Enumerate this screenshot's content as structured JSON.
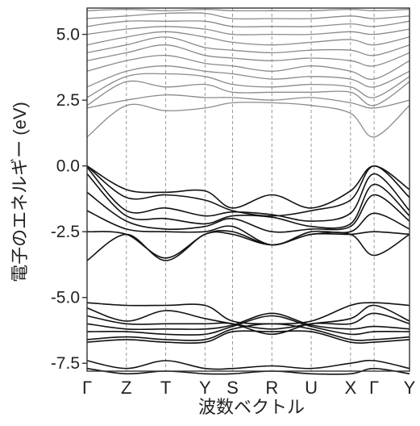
{
  "chart_data": {
    "type": "line",
    "xlabel": "波数ベクトル",
    "ylabel": "電子のエネルギー (eV)",
    "ylim": [
      -7.8,
      6.0
    ],
    "yticks": [
      5.0,
      2.5,
      0.0,
      -2.5,
      -5.0,
      -7.5
    ],
    "ytick_labels": [
      "5.0",
      "2.5",
      "0.0",
      "-2.5",
      "-5.0",
      "-7.5"
    ],
    "kpoints": [
      "Γ",
      "Z",
      "T",
      "Y",
      "S",
      "R",
      "U",
      "X",
      "Γ",
      "Y"
    ],
    "kpoint_x": [
      0,
      1,
      2,
      3,
      3.7,
      4.7,
      5.7,
      6.7,
      7.3,
      8.2
    ],
    "grid": "vertical dashed lines at k-points",
    "colors": {
      "conduction": "#8a8a8a",
      "valence": "#111111",
      "guide": "#999999",
      "axis": "#333333"
    },
    "series": [
      {
        "band": "valence",
        "y": [
          0.0,
          -0.9,
          -1.0,
          -0.95,
          -1.6,
          -1.1,
          -1.6,
          -0.95,
          0.0,
          -0.9
        ]
      },
      {
        "band": "valence",
        "y": [
          0.0,
          -1.2,
          -1.1,
          -1.3,
          -1.7,
          -1.9,
          -1.7,
          -1.3,
          0.0,
          -1.2
        ]
      },
      {
        "band": "valence",
        "y": [
          -0.05,
          -1.7,
          -1.6,
          -1.9,
          -1.75,
          -1.85,
          -2.1,
          -1.8,
          -0.3,
          -1.7
        ]
      },
      {
        "band": "valence",
        "y": [
          -0.3,
          -1.9,
          -2.0,
          -2.2,
          -1.9,
          -1.95,
          -2.3,
          -2.2,
          -0.7,
          -1.9
        ]
      },
      {
        "band": "valence",
        "y": [
          -1.0,
          -2.1,
          -2.4,
          -2.3,
          -2.0,
          -2.5,
          -2.4,
          -2.3,
          -1.1,
          -2.1
        ]
      },
      {
        "band": "valence",
        "y": [
          -1.7,
          -2.4,
          -2.5,
          -2.5,
          -2.3,
          -3.0,
          -2.5,
          -2.5,
          -1.8,
          -2.4
        ]
      },
      {
        "band": "valence",
        "y": [
          -2.5,
          -2.6,
          -3.5,
          -2.6,
          -2.5,
          -3.0,
          -2.6,
          -2.6,
          -2.5,
          -2.6
        ]
      },
      {
        "band": "valence",
        "y": [
          -3.6,
          -2.6,
          -3.6,
          -2.6,
          -2.6,
          -3.0,
          -2.6,
          -2.6,
          -3.4,
          -2.6
        ]
      },
      {
        "band": "valence",
        "y": [
          -5.2,
          -5.3,
          -5.3,
          -5.3,
          -5.9,
          -6.0,
          -5.9,
          -5.3,
          -5.2,
          -5.3
        ]
      },
      {
        "band": "valence",
        "y": [
          -5.4,
          -5.9,
          -5.5,
          -5.8,
          -6.0,
          -6.2,
          -6.0,
          -5.8,
          -5.3,
          -5.9
        ]
      },
      {
        "band": "valence",
        "y": [
          -5.7,
          -6.0,
          -6.0,
          -6.0,
          -6.0,
          -6.4,
          -6.0,
          -6.0,
          -5.6,
          -6.0
        ]
      },
      {
        "band": "valence",
        "y": [
          -6.0,
          -6.2,
          -6.2,
          -6.2,
          -6.05,
          -5.6,
          -6.05,
          -6.2,
          -6.1,
          -6.2
        ]
      },
      {
        "band": "valence",
        "y": [
          -6.3,
          -6.3,
          -6.4,
          -6.4,
          -6.1,
          -5.7,
          -6.1,
          -6.4,
          -6.3,
          -6.3
        ]
      },
      {
        "band": "valence",
        "y": [
          -6.6,
          -6.5,
          -6.6,
          -6.6,
          -6.2,
          -6.0,
          -6.2,
          -6.6,
          -6.6,
          -6.5
        ]
      },
      {
        "band": "valence",
        "y": [
          -6.7,
          -6.6,
          -6.7,
          -6.7,
          -6.3,
          -6.3,
          -6.3,
          -6.7,
          -6.7,
          -6.6
        ]
      },
      {
        "band": "valence",
        "y": [
          -7.4,
          -7.7,
          -7.4,
          -7.7,
          -7.7,
          -7.6,
          -7.7,
          -7.5,
          -7.4,
          -7.7
        ]
      },
      {
        "band": "valence",
        "y": [
          -7.7,
          -7.9,
          -7.8,
          -7.9,
          -7.9,
          -7.8,
          -7.9,
          -7.9,
          -7.7,
          -7.9
        ]
      },
      {
        "band": "conduction",
        "y": [
          1.1,
          2.3,
          2.1,
          2.2,
          2.4,
          2.4,
          2.3,
          2.0,
          1.1,
          2.3
        ]
      },
      {
        "band": "conduction",
        "y": [
          2.2,
          2.5,
          2.7,
          2.6,
          2.6,
          2.5,
          2.6,
          2.4,
          2.2,
          2.5
        ]
      },
      {
        "band": "conduction",
        "y": [
          2.3,
          3.2,
          3.0,
          3.1,
          2.8,
          2.8,
          2.8,
          2.8,
          2.3,
          3.2
        ]
      },
      {
        "band": "conduction",
        "y": [
          2.6,
          3.4,
          3.5,
          3.4,
          3.1,
          3.0,
          3.1,
          3.0,
          2.6,
          3.4
        ]
      },
      {
        "band": "conduction",
        "y": [
          3.0,
          3.6,
          3.8,
          3.6,
          3.5,
          3.3,
          3.4,
          3.3,
          3.0,
          3.6
        ]
      },
      {
        "band": "conduction",
        "y": [
          3.6,
          4.0,
          4.2,
          3.9,
          3.8,
          3.6,
          3.8,
          3.6,
          3.3,
          4.0
        ]
      },
      {
        "band": "conduction",
        "y": [
          4.0,
          4.3,
          4.6,
          4.2,
          4.1,
          4.0,
          4.1,
          4.0,
          3.8,
          4.3
        ]
      },
      {
        "band": "conduction",
        "y": [
          4.3,
          4.6,
          4.9,
          4.5,
          4.4,
          4.3,
          4.4,
          4.4,
          4.2,
          4.6
        ]
      },
      {
        "band": "conduction",
        "y": [
          4.6,
          4.9,
          5.1,
          4.9,
          4.7,
          4.6,
          4.7,
          4.8,
          4.6,
          4.9
        ]
      },
      {
        "band": "conduction",
        "y": [
          5.0,
          5.2,
          5.3,
          5.2,
          5.0,
          5.0,
          5.0,
          5.1,
          5.0,
          5.2
        ]
      },
      {
        "band": "conduction",
        "y": [
          5.3,
          5.5,
          5.5,
          5.5,
          5.3,
          5.3,
          5.3,
          5.4,
          5.3,
          5.5
        ]
      },
      {
        "band": "conduction",
        "y": [
          5.6,
          5.7,
          5.8,
          5.8,
          5.6,
          5.6,
          5.6,
          5.7,
          5.6,
          5.7
        ]
      },
      {
        "band": "conduction",
        "y": [
          5.9,
          5.95,
          5.9,
          5.95,
          5.9,
          5.9,
          5.9,
          5.95,
          5.9,
          5.95
        ]
      }
    ]
  }
}
